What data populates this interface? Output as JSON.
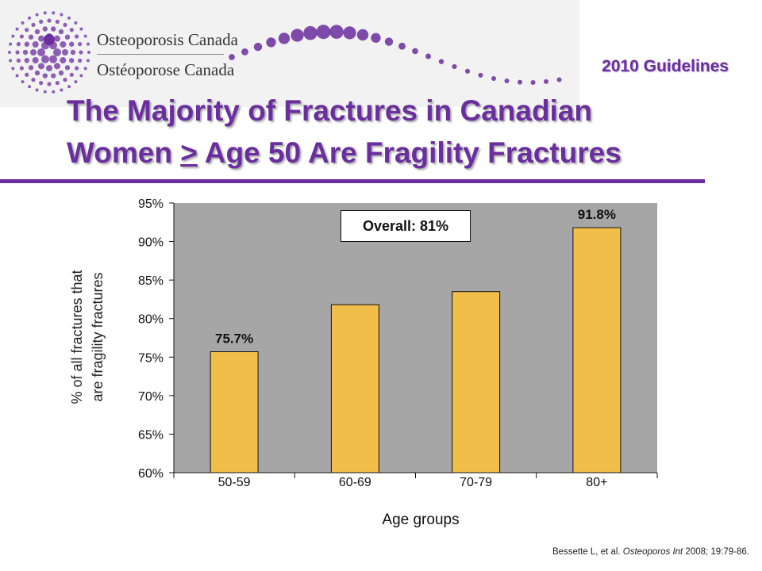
{
  "header": {
    "org_name_en": "Osteoporosis Canada",
    "org_name_fr": "Ostéoporose Canada",
    "guidelines": "2010 Guidelines"
  },
  "slide": {
    "title_line1": "The Majority of Fractures in Canadian",
    "title_line2_pre": "Women ",
    "title_line2_underlined": ">",
    "title_line2_post": " Age 50 Are Fragility Fractures"
  },
  "colors": {
    "brand_purple": "#6a2e9e",
    "plot_background": "#a6a6a6",
    "bar_fill": "#f2be4a"
  },
  "chart_data": {
    "type": "bar",
    "categories": [
      "50-59",
      "60-69",
      "70-79",
      "80+"
    ],
    "values": [
      75.7,
      81.8,
      83.5,
      91.8
    ],
    "data_labels": [
      "75.7%",
      "",
      "",
      "91.8%"
    ],
    "ylim": [
      60,
      95
    ],
    "yticks": [
      "60%",
      "65%",
      "70%",
      "75%",
      "80%",
      "85%",
      "90%",
      "95%"
    ],
    "ylabel_line1": "% of all fractures that",
    "ylabel_line2": "are fragility fractures",
    "xlabel": "Age groups",
    "annotation": "Overall: 81%",
    "grid": false
  },
  "source": {
    "prefix": "Bessette L, et al. ",
    "journal": "Osteoporos Int",
    "suffix": " 2008; 19:79-86."
  }
}
